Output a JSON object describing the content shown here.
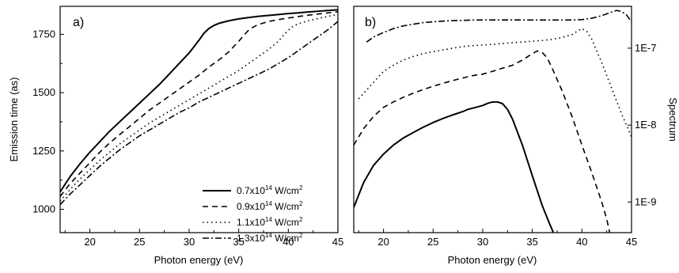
{
  "chart_data": [
    {
      "type": "line",
      "panel_label": "a)",
      "xlabel": "Photon energy (eV)",
      "ylabel": "Emission time (as)",
      "xlim": [
        17,
        45
      ],
      "ylim": [
        900,
        1870
      ],
      "yscale": "linear",
      "xticks": [
        "20",
        "25",
        "30",
        "35",
        "40",
        "45"
      ],
      "yticks": [
        "1000",
        "1250",
        "1500",
        "1750"
      ],
      "legend_position": "lower-right",
      "series": [
        {
          "name": "0.7x10^14 W/cm^2",
          "legend_label": {
            "base": "0.7x10",
            "exp": "14",
            "unit": " W/cm",
            "unit_exp": "2"
          },
          "dash": "solid",
          "x": [
            17,
            18,
            19,
            20,
            21,
            22,
            23,
            24,
            25,
            26,
            27,
            28,
            29,
            30,
            31,
            31.5,
            32,
            32.5,
            33,
            34,
            35,
            36,
            37,
            38,
            39,
            40,
            41,
            42,
            43,
            44,
            45
          ],
          "y": [
            1075,
            1140,
            1195,
            1245,
            1290,
            1335,
            1375,
            1415,
            1455,
            1495,
            1535,
            1580,
            1625,
            1670,
            1725,
            1755,
            1775,
            1788,
            1797,
            1808,
            1816,
            1822,
            1827,
            1831,
            1835,
            1839,
            1842,
            1846,
            1849,
            1852,
            1855
          ]
        },
        {
          "name": "0.9x10^14 W/cm^2",
          "legend_label": {
            "base": "0.9x10",
            "exp": "14",
            "unit": " W/cm",
            "unit_exp": "2"
          },
          "dash": "dashed",
          "x": [
            17,
            18,
            19,
            20,
            21,
            22,
            23,
            24,
            25,
            26,
            27,
            28,
            29,
            30,
            31,
            32,
            33,
            34,
            35,
            35.5,
            36,
            36.5,
            37,
            38,
            39,
            40,
            41,
            42,
            43,
            44,
            45
          ],
          "y": [
            1055,
            1110,
            1155,
            1200,
            1245,
            1285,
            1320,
            1355,
            1390,
            1425,
            1455,
            1485,
            1515,
            1545,
            1575,
            1610,
            1640,
            1675,
            1720,
            1745,
            1768,
            1782,
            1792,
            1805,
            1813,
            1820,
            1826,
            1832,
            1837,
            1842,
            1847
          ]
        },
        {
          "name": "1.1x10^14 W/cm^2",
          "legend_label": {
            "base": "1.1x10",
            "exp": "14",
            "unit": " W/cm",
            "unit_exp": "2"
          },
          "dash": "dotted",
          "x": [
            17,
            18,
            19,
            20,
            21,
            22,
            23,
            24,
            25,
            26,
            27,
            28,
            29,
            30,
            31,
            32,
            33,
            34,
            35,
            36,
            37,
            38,
            39,
            39.5,
            40,
            40.5,
            41,
            42,
            43,
            44,
            45
          ],
          "y": [
            1035,
            1085,
            1130,
            1170,
            1210,
            1245,
            1280,
            1310,
            1340,
            1370,
            1395,
            1420,
            1445,
            1470,
            1495,
            1520,
            1545,
            1570,
            1595,
            1625,
            1655,
            1685,
            1720,
            1745,
            1768,
            1785,
            1795,
            1808,
            1818,
            1827,
            1835
          ]
        },
        {
          "name": "1.3x10^14 W/cm^2",
          "legend_label": {
            "base": "1.3x10",
            "exp": "14",
            "unit": " W/cm",
            "unit_exp": "2"
          },
          "dash": "dashdot",
          "x": [
            17,
            18,
            19,
            20,
            21,
            22,
            23,
            24,
            25,
            26,
            27,
            28,
            29,
            30,
            31,
            32,
            33,
            34,
            35,
            36,
            37,
            38,
            39,
            40,
            41,
            42,
            43,
            44,
            45
          ],
          "y": [
            1020,
            1065,
            1105,
            1145,
            1185,
            1220,
            1255,
            1285,
            1315,
            1340,
            1365,
            1390,
            1415,
            1435,
            1460,
            1480,
            1500,
            1520,
            1540,
            1560,
            1580,
            1600,
            1625,
            1650,
            1680,
            1710,
            1740,
            1770,
            1805
          ]
        }
      ]
    },
    {
      "type": "line",
      "panel_label": "b)",
      "xlabel": "Photon energy (eV)",
      "ylabel": "Spectrum",
      "xlim": [
        17,
        45
      ],
      "ylim": [
        4e-10,
        3.5e-07
      ],
      "yscale": "log",
      "xticks": [
        "20",
        "25",
        "30",
        "35",
        "40",
        "45"
      ],
      "yticks": [
        "1E-9",
        "1E-8",
        "1E-7"
      ],
      "yticks_side": "right",
      "series": [
        {
          "dash": "solid",
          "x": [
            17,
            18,
            19,
            20,
            21,
            22,
            23,
            24,
            25,
            26,
            27,
            28,
            28.5,
            29,
            30,
            30.5,
            31,
            31.5,
            32,
            32.5,
            33,
            34,
            35,
            36,
            36.8,
            37.2
          ],
          "y": [
            8.5e-10,
            1.8e-09,
            3e-09,
            4.2e-09,
            5.5e-09,
            6.8e-09,
            8e-09,
            9.4e-09,
            1.08e-08,
            1.22e-08,
            1.36e-08,
            1.5e-08,
            1.6e-08,
            1.66e-08,
            1.8e-08,
            1.92e-08,
            2e-08,
            2e-08,
            1.9e-08,
            1.6e-08,
            1.2e-08,
            5.5e-09,
            2.2e-09,
            9e-10,
            5e-10,
            3.8e-10
          ]
        },
        {
          "dash": "dashed",
          "x": [
            17,
            18,
            19,
            20,
            21,
            22,
            23,
            24,
            25,
            26,
            27,
            28,
            29,
            30,
            31,
            32,
            33,
            34,
            35,
            35.5,
            36,
            36.5,
            37,
            38,
            39,
            40,
            41,
            42,
            42.5,
            42.8
          ],
          "y": [
            5.5e-09,
            9e-09,
            1.3e-08,
            1.7e-08,
            2e-08,
            2.3e-08,
            2.6e-08,
            2.9e-08,
            3.2e-08,
            3.5e-08,
            3.8e-08,
            4.1e-08,
            4.4e-08,
            4.6e-08,
            5e-08,
            5.5e-08,
            6e-08,
            7e-08,
            8.5e-08,
            9.2e-08,
            8.8e-08,
            7.5e-08,
            5.5e-08,
            2.8e-08,
            1.3e-08,
            5.5e-09,
            2.4e-09,
            1e-09,
            6e-10,
            4e-10
          ]
        },
        {
          "dash": "dotted",
          "x": [
            17.5,
            18,
            19,
            20,
            21,
            22,
            23,
            24,
            25,
            26,
            27,
            28,
            29,
            30,
            31,
            32,
            33,
            34,
            35,
            36,
            37,
            38,
            39,
            39.5,
            40,
            40.5,
            41,
            42,
            43,
            44,
            45
          ],
          "y": [
            2.2e-08,
            2.6e-08,
            3.6e-08,
            5e-08,
            6e-08,
            7e-08,
            7.8e-08,
            8.5e-08,
            9e-08,
            9.5e-08,
            1e-07,
            1.05e-07,
            1.08e-07,
            1.1e-07,
            1.12e-07,
            1.15e-07,
            1.18e-07,
            1.2e-07,
            1.23e-07,
            1.26e-07,
            1.3e-07,
            1.38e-07,
            1.5e-07,
            1.65e-07,
            1.8e-07,
            1.65e-07,
            1.3e-07,
            6.5e-08,
            3e-08,
            1.4e-08,
            7e-09
          ]
        },
        {
          "dash": "dashdot",
          "x": [
            18.3,
            19,
            20,
            21,
            22,
            23,
            24,
            25,
            26,
            27,
            28,
            29,
            30,
            31,
            32,
            33,
            34,
            35,
            36,
            37,
            38,
            39,
            40,
            41,
            42,
            43,
            43.5,
            44,
            44.5,
            45
          ],
          "y": [
            1.2e-07,
            1.4e-07,
            1.6e-07,
            1.8e-07,
            1.95e-07,
            2.05e-07,
            2.15e-07,
            2.2e-07,
            2.25e-07,
            2.28e-07,
            2.3e-07,
            2.32e-07,
            2.33e-07,
            2.33e-07,
            2.33e-07,
            2.33e-07,
            2.33e-07,
            2.32e-07,
            2.32e-07,
            2.32e-07,
            2.32e-07,
            2.33e-07,
            2.35e-07,
            2.45e-07,
            2.65e-07,
            2.95e-07,
            3.1e-07,
            3e-07,
            2.7e-07,
            2.2e-07
          ]
        }
      ]
    }
  ]
}
